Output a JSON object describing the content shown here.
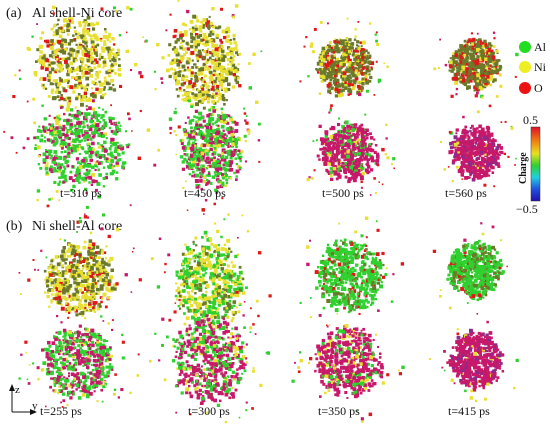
{
  "panels": [
    {
      "label": "(a)",
      "title": "Al shell-Ni core",
      "times": [
        "t=310 ps",
        "t=450 ps",
        "t=500 ps",
        "t=560 ps"
      ]
    },
    {
      "label": "(b)",
      "title": "Ni shell-Al core",
      "times": [
        "t=255 ps",
        "t=300 ps",
        "t=350 ps",
        "t=415 ps"
      ]
    }
  ],
  "legend": [
    {
      "label": "Al",
      "color": "#22dd22"
    },
    {
      "label": "Ni",
      "color": "#eeee22"
    },
    {
      "label": "O",
      "color": "#ee1111"
    }
  ],
  "colorbar": {
    "title": "Charge",
    "max_label": "0.5",
    "min_label": "−0.5"
  },
  "axes": {
    "vertical": "z",
    "horizontal": "y"
  },
  "colors": {
    "al": "#2fd12f",
    "ni": "#e8e030",
    "o": "#e01818",
    "dark_al": "#6b7a2a",
    "magenta": "#c8186a",
    "purple": "#8a2a8a"
  }
}
